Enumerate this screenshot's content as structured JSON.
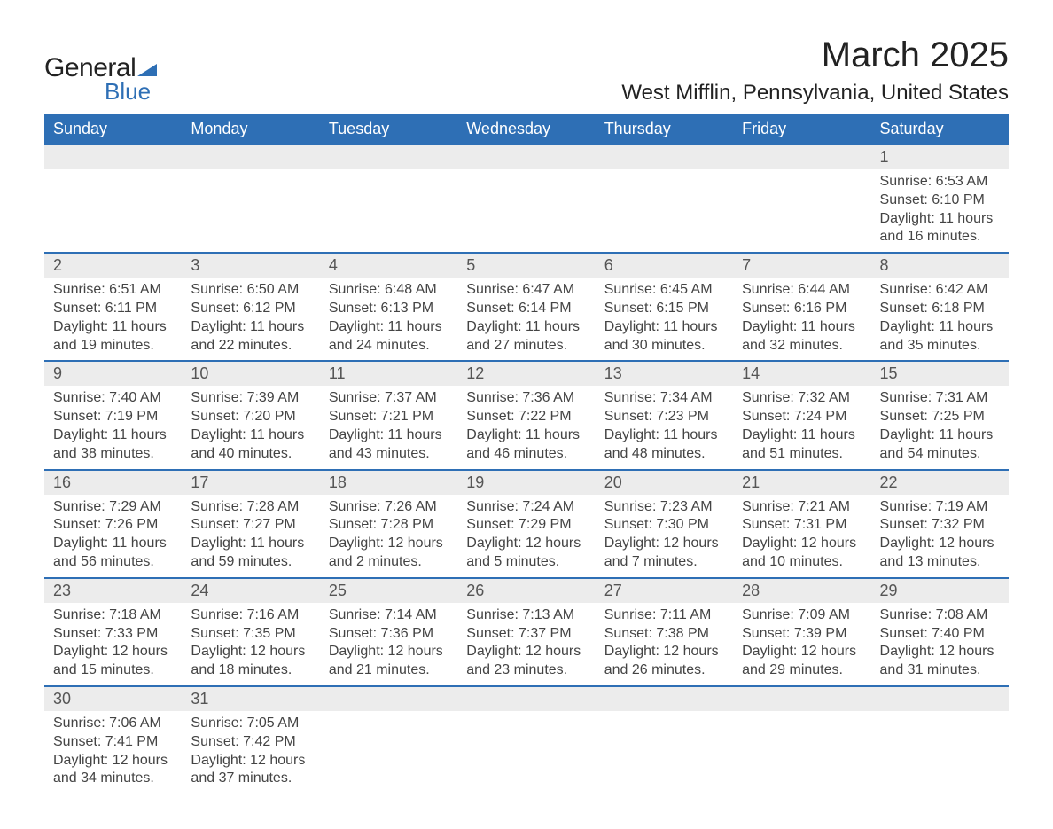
{
  "logo": {
    "text1": "General",
    "text2": "Blue",
    "tri_color": "#2e6fb5"
  },
  "title": "March 2025",
  "location": "West Mifflin, Pennsylvania, United States",
  "colors": {
    "header_bg": "#2e6fb5",
    "header_text": "#ffffff",
    "daynum_bg": "#ececec",
    "row_border": "#2e6fb5",
    "body_text": "#444444"
  },
  "weekdays": [
    "Sunday",
    "Monday",
    "Tuesday",
    "Wednesday",
    "Thursday",
    "Friday",
    "Saturday"
  ],
  "weeks": [
    [
      null,
      null,
      null,
      null,
      null,
      null,
      {
        "n": "1",
        "sunrise": "6:53 AM",
        "sunset": "6:10 PM",
        "daylight": "11 hours and 16 minutes."
      }
    ],
    [
      {
        "n": "2",
        "sunrise": "6:51 AM",
        "sunset": "6:11 PM",
        "daylight": "11 hours and 19 minutes."
      },
      {
        "n": "3",
        "sunrise": "6:50 AM",
        "sunset": "6:12 PM",
        "daylight": "11 hours and 22 minutes."
      },
      {
        "n": "4",
        "sunrise": "6:48 AM",
        "sunset": "6:13 PM",
        "daylight": "11 hours and 24 minutes."
      },
      {
        "n": "5",
        "sunrise": "6:47 AM",
        "sunset": "6:14 PM",
        "daylight": "11 hours and 27 minutes."
      },
      {
        "n": "6",
        "sunrise": "6:45 AM",
        "sunset": "6:15 PM",
        "daylight": "11 hours and 30 minutes."
      },
      {
        "n": "7",
        "sunrise": "6:44 AM",
        "sunset": "6:16 PM",
        "daylight": "11 hours and 32 minutes."
      },
      {
        "n": "8",
        "sunrise": "6:42 AM",
        "sunset": "6:18 PM",
        "daylight": "11 hours and 35 minutes."
      }
    ],
    [
      {
        "n": "9",
        "sunrise": "7:40 AM",
        "sunset": "7:19 PM",
        "daylight": "11 hours and 38 minutes."
      },
      {
        "n": "10",
        "sunrise": "7:39 AM",
        "sunset": "7:20 PM",
        "daylight": "11 hours and 40 minutes."
      },
      {
        "n": "11",
        "sunrise": "7:37 AM",
        "sunset": "7:21 PM",
        "daylight": "11 hours and 43 minutes."
      },
      {
        "n": "12",
        "sunrise": "7:36 AM",
        "sunset": "7:22 PM",
        "daylight": "11 hours and 46 minutes."
      },
      {
        "n": "13",
        "sunrise": "7:34 AM",
        "sunset": "7:23 PM",
        "daylight": "11 hours and 48 minutes."
      },
      {
        "n": "14",
        "sunrise": "7:32 AM",
        "sunset": "7:24 PM",
        "daylight": "11 hours and 51 minutes."
      },
      {
        "n": "15",
        "sunrise": "7:31 AM",
        "sunset": "7:25 PM",
        "daylight": "11 hours and 54 minutes."
      }
    ],
    [
      {
        "n": "16",
        "sunrise": "7:29 AM",
        "sunset": "7:26 PM",
        "daylight": "11 hours and 56 minutes."
      },
      {
        "n": "17",
        "sunrise": "7:28 AM",
        "sunset": "7:27 PM",
        "daylight": "11 hours and 59 minutes."
      },
      {
        "n": "18",
        "sunrise": "7:26 AM",
        "sunset": "7:28 PM",
        "daylight": "12 hours and 2 minutes."
      },
      {
        "n": "19",
        "sunrise": "7:24 AM",
        "sunset": "7:29 PM",
        "daylight": "12 hours and 5 minutes."
      },
      {
        "n": "20",
        "sunrise": "7:23 AM",
        "sunset": "7:30 PM",
        "daylight": "12 hours and 7 minutes."
      },
      {
        "n": "21",
        "sunrise": "7:21 AM",
        "sunset": "7:31 PM",
        "daylight": "12 hours and 10 minutes."
      },
      {
        "n": "22",
        "sunrise": "7:19 AM",
        "sunset": "7:32 PM",
        "daylight": "12 hours and 13 minutes."
      }
    ],
    [
      {
        "n": "23",
        "sunrise": "7:18 AM",
        "sunset": "7:33 PM",
        "daylight": "12 hours and 15 minutes."
      },
      {
        "n": "24",
        "sunrise": "7:16 AM",
        "sunset": "7:35 PM",
        "daylight": "12 hours and 18 minutes."
      },
      {
        "n": "25",
        "sunrise": "7:14 AM",
        "sunset": "7:36 PM",
        "daylight": "12 hours and 21 minutes."
      },
      {
        "n": "26",
        "sunrise": "7:13 AM",
        "sunset": "7:37 PM",
        "daylight": "12 hours and 23 minutes."
      },
      {
        "n": "27",
        "sunrise": "7:11 AM",
        "sunset": "7:38 PM",
        "daylight": "12 hours and 26 minutes."
      },
      {
        "n": "28",
        "sunrise": "7:09 AM",
        "sunset": "7:39 PM",
        "daylight": "12 hours and 29 minutes."
      },
      {
        "n": "29",
        "sunrise": "7:08 AM",
        "sunset": "7:40 PM",
        "daylight": "12 hours and 31 minutes."
      }
    ],
    [
      {
        "n": "30",
        "sunrise": "7:06 AM",
        "sunset": "7:41 PM",
        "daylight": "12 hours and 34 minutes."
      },
      {
        "n": "31",
        "sunrise": "7:05 AM",
        "sunset": "7:42 PM",
        "daylight": "12 hours and 37 minutes."
      },
      null,
      null,
      null,
      null,
      null
    ]
  ],
  "labels": {
    "sunrise": "Sunrise: ",
    "sunset": "Sunset: ",
    "daylight": "Daylight: "
  }
}
